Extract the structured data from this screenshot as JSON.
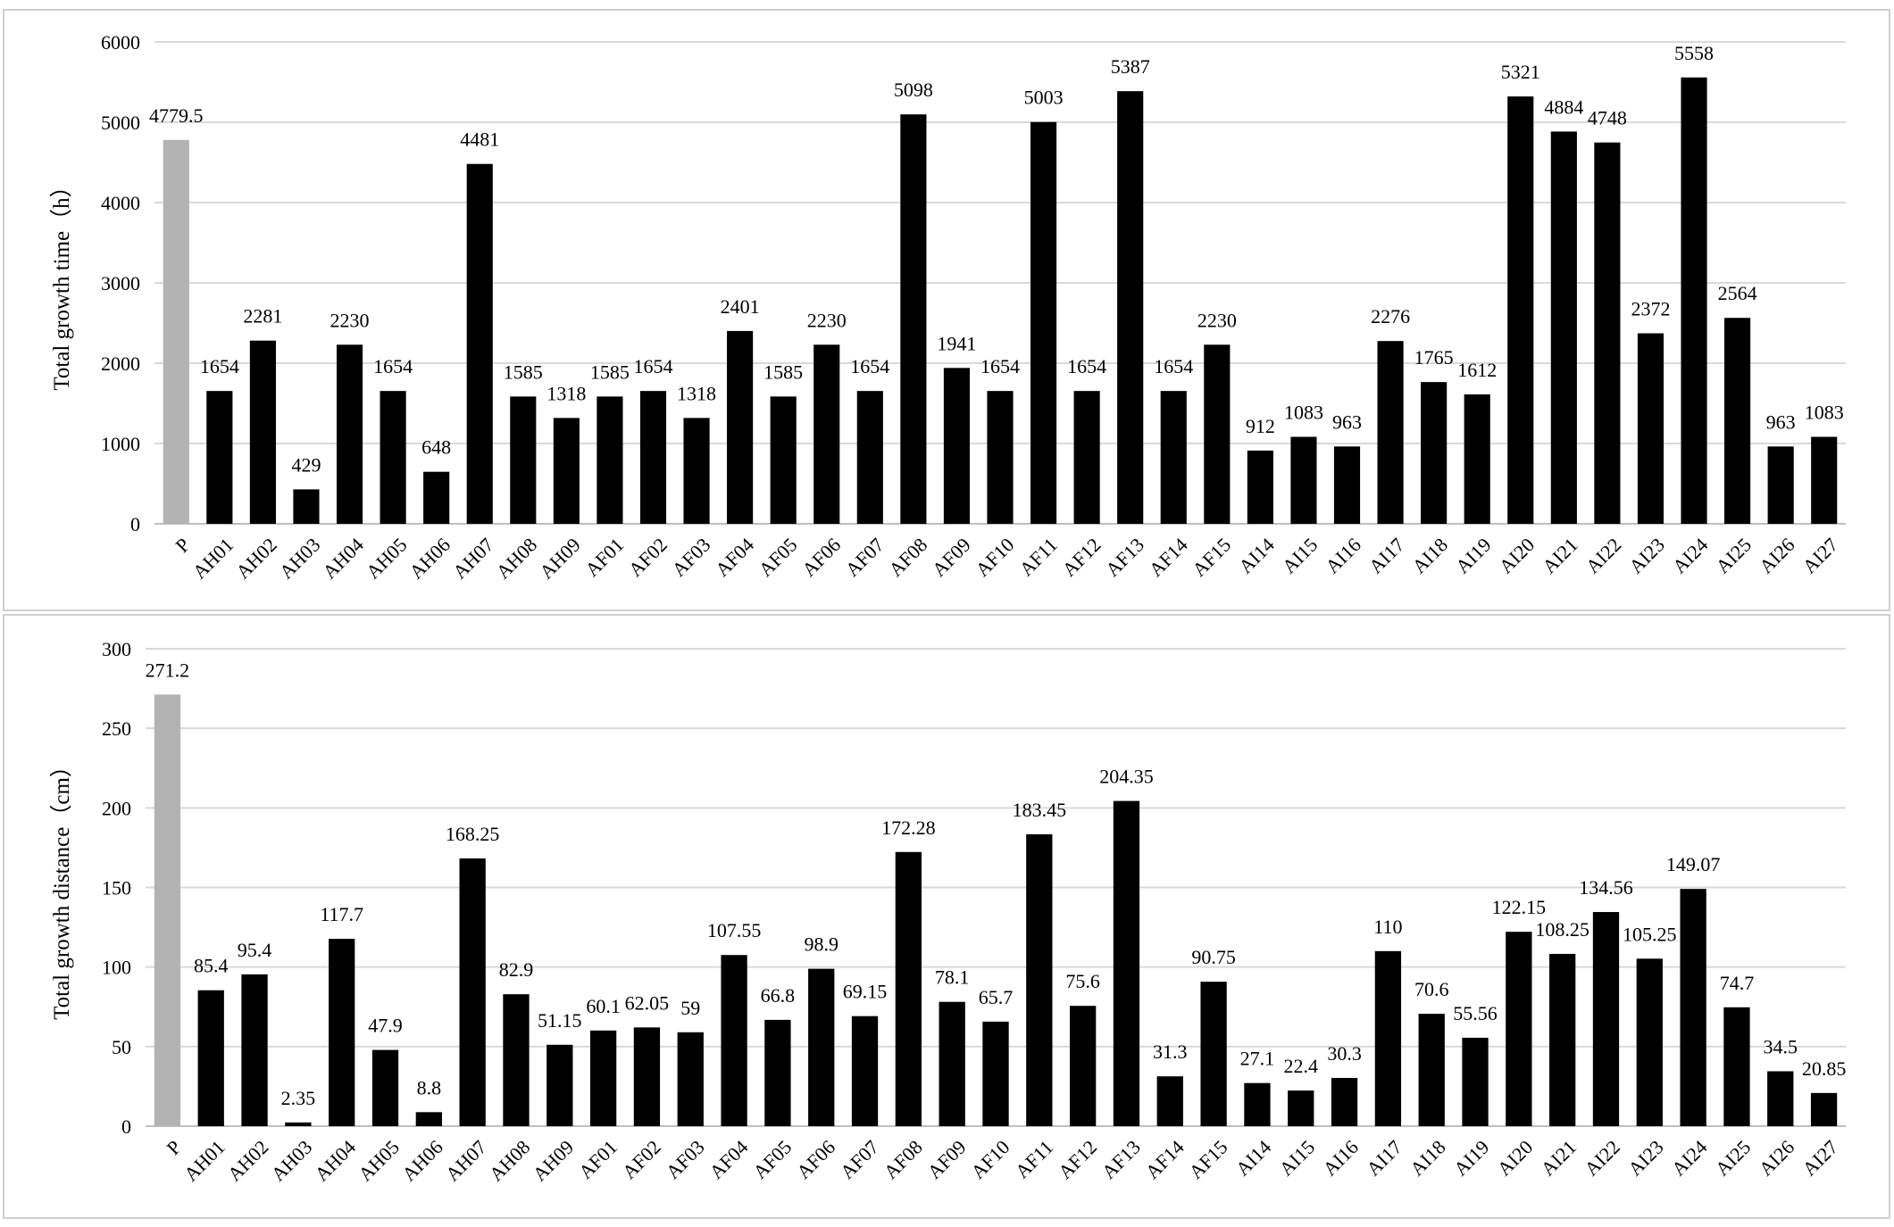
{
  "colors": {
    "highlight_bar": "#b3b3b3",
    "bar": "#000000",
    "grid": "#d9d9d9"
  },
  "chart_data": [
    {
      "type": "bar",
      "ylabel": "Total growth time（h）",
      "ylim": [
        0,
        6000
      ],
      "yticks": [
        0,
        1000,
        2000,
        3000,
        4000,
        5000,
        6000
      ],
      "grid": true,
      "categories": [
        "P",
        "AH01",
        "AH02",
        "AH03",
        "AH04",
        "AH05",
        "AH06",
        "AH07",
        "AH08",
        "AH09",
        "AF01",
        "AF02",
        "AF03",
        "AF04",
        "AF05",
        "AF06",
        "AF07",
        "AF08",
        "AF09",
        "AF10",
        "AF11",
        "AF12",
        "AF13",
        "AF14",
        "AF15",
        "AI14",
        "AI15",
        "AI16",
        "AI17",
        "AI18",
        "AI19",
        "AI20",
        "AI21",
        "AI22",
        "AI23",
        "AI24",
        "AI25",
        "AI26",
        "AI27"
      ],
      "values": [
        4779.5,
        1654,
        2281,
        429,
        2230,
        1654,
        648,
        4481,
        1585,
        1318,
        1585,
        1654,
        1318,
        2401,
        1585,
        2230,
        1654,
        5098,
        1941,
        1654,
        5003,
        1654,
        5387,
        1654,
        2230,
        912,
        1083,
        963,
        2276,
        1765,
        1612,
        5321,
        4884,
        4748,
        2372,
        5558,
        2564,
        963,
        1083
      ],
      "data_labels": [
        "4779.5",
        "1654",
        "2281",
        "429",
        "2230",
        "1654",
        "648",
        "4481",
        "1585",
        "1318",
        "1585",
        "1654",
        "1318",
        "2401",
        "1585",
        "2230",
        "1654",
        "5098",
        "1941",
        "1654",
        "5003",
        "1654",
        "5387",
        "1654",
        "2230",
        "912",
        "1083",
        "963",
        "2276",
        "1765",
        "1612",
        "5321",
        "4884",
        "4748",
        "2372",
        "5558",
        "2564",
        "963",
        "1083"
      ]
    },
    {
      "type": "bar",
      "ylabel": "Total growth distance（cm）",
      "ylim": [
        0,
        300
      ],
      "yticks": [
        0,
        50,
        100,
        150,
        200,
        250,
        300
      ],
      "grid": true,
      "categories": [
        "P",
        "AH01",
        "AH02",
        "AH03",
        "AH04",
        "AH05",
        "AH06",
        "AH07",
        "AH08",
        "AH09",
        "AF01",
        "AF02",
        "AF03",
        "AF04",
        "AF05",
        "AF06",
        "AF07",
        "AF08",
        "AF09",
        "AF10",
        "AF11",
        "AF12",
        "AF13",
        "AF14",
        "AF15",
        "AI14",
        "AI15",
        "AI16",
        "AI17",
        "AI18",
        "AI19",
        "AI20",
        "AI21",
        "AI22",
        "AI23",
        "AI24",
        "AI25",
        "AI26",
        "AI27"
      ],
      "values": [
        271.2,
        85.4,
        95.4,
        2.35,
        117.7,
        47.9,
        8.8,
        168.25,
        82.9,
        51.15,
        60.1,
        62.05,
        59,
        107.55,
        66.8,
        98.9,
        69.15,
        172.28,
        78.1,
        65.7,
        183.45,
        75.6,
        204.35,
        31.3,
        90.75,
        27.1,
        22.4,
        30.3,
        110,
        70.6,
        55.56,
        122.15,
        108.25,
        134.56,
        105.25,
        149.07,
        74.7,
        34.5,
        20.85
      ],
      "data_labels": [
        "271.2",
        "85.4",
        "95.4",
        "2.35",
        "117.7",
        "47.9",
        "8.8",
        "168.25",
        "82.9",
        "51.15",
        "60.1",
        "62.05",
        "59",
        "107.55",
        "66.8",
        "98.9",
        "69.15",
        "172.28",
        "78.1",
        "65.7",
        "183.45",
        "75.6",
        "204.35",
        "31.3",
        "90.75",
        "27.1",
        "22.4",
        "30.3",
        "110",
        "70.6",
        "55.56",
        "122.15",
        "108.25",
        "134.56",
        "105.25",
        "149.07",
        "74.7",
        "34.5",
        "20.85"
      ]
    }
  ]
}
